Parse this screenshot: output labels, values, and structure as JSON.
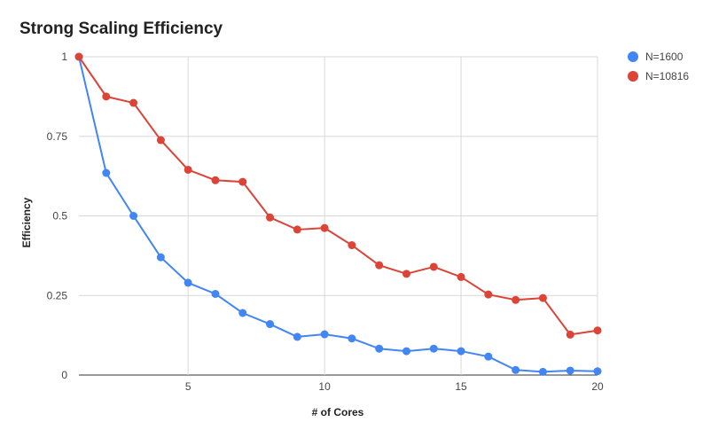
{
  "chart_data": {
    "type": "line",
    "title": "Strong Scaling Efficiency",
    "xlabel": "# of Cores",
    "ylabel": "Efficiency",
    "xlim": [
      1,
      20
    ],
    "ylim": [
      0,
      1
    ],
    "x_ticks": [
      5,
      10,
      15,
      20
    ],
    "y_ticks": [
      0,
      0.25,
      0.5,
      0.75,
      1
    ],
    "y_tick_labels": [
      "0",
      "0.25",
      "0.5",
      "0.75",
      "1"
    ],
    "grid": true,
    "legend_position": "top-right",
    "x": [
      1,
      2,
      3,
      4,
      5,
      6,
      7,
      8,
      9,
      10,
      11,
      12,
      13,
      14,
      15,
      16,
      17,
      18,
      19,
      20
    ],
    "series": [
      {
        "name": "N=1600",
        "color": "#4285f4",
        "values": [
          1.0,
          0.635,
          0.5,
          0.37,
          0.29,
          0.255,
          0.195,
          0.16,
          0.12,
          0.128,
          0.115,
          0.083,
          0.075,
          0.083,
          0.075,
          0.058,
          0.016,
          0.01,
          0.014,
          0.012
        ]
      },
      {
        "name": "N=10816",
        "color": "#db4437",
        "values": [
          1.0,
          0.875,
          0.855,
          0.738,
          0.645,
          0.612,
          0.607,
          0.495,
          0.457,
          0.462,
          0.408,
          0.345,
          0.318,
          0.34,
          0.308,
          0.253,
          0.236,
          0.242,
          0.127,
          0.14
        ]
      }
    ]
  }
}
